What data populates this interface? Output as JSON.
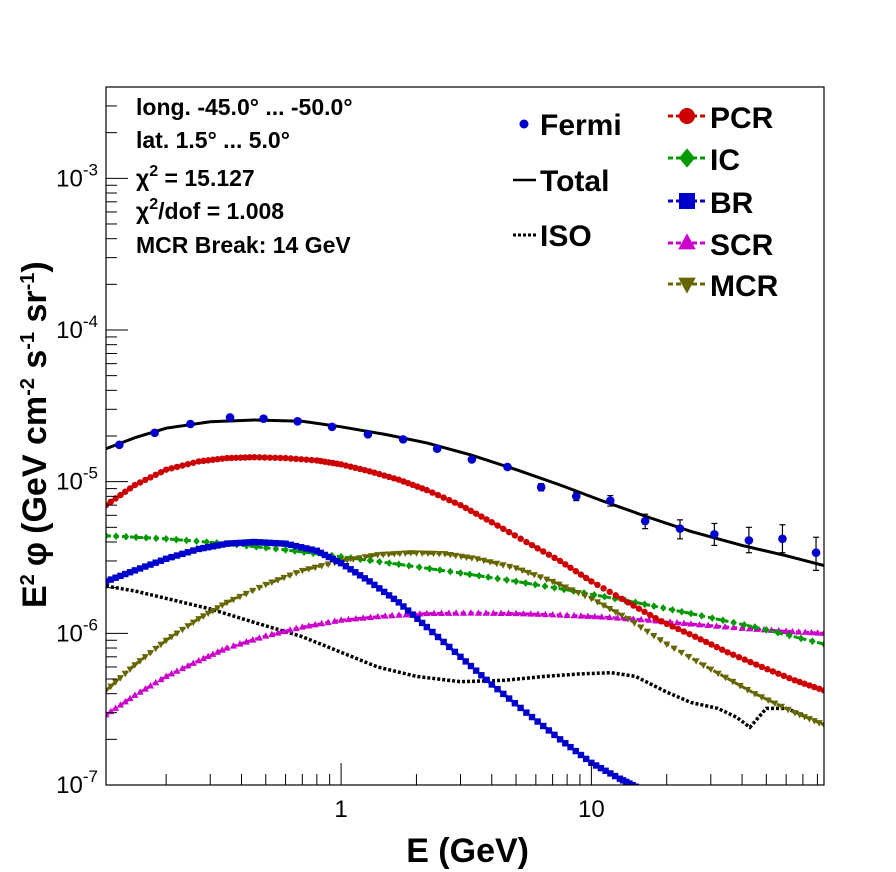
{
  "chart_data": {
    "type": "line",
    "xlabel": "E (GeV)",
    "ylabel_parts": {
      "prefix": "E",
      "prefix_sup": "2",
      "phi": "φ",
      "open": "(GeV cm",
      "cm_sup": "-2",
      "s": " s",
      "s_sup": "-1",
      "sr": " sr",
      "sr_sup": "-1",
      "close": ")"
    },
    "x_scale": "log",
    "y_scale": "log",
    "xlim": [
      0.115,
      85
    ],
    "ylim": [
      1e-07,
      0.004
    ],
    "x_tick_labels": [
      "1",
      "10"
    ],
    "y_tick_labels": [
      {
        "base": "10",
        "exp": "-7",
        "value": 1e-07
      },
      {
        "base": "10",
        "exp": "-6",
        "value": 1e-06
      },
      {
        "base": "10",
        "exp": "-5",
        "value": 1e-05
      },
      {
        "base": "10",
        "exp": "-4",
        "value": 0.0001
      },
      {
        "base": "10",
        "exp": "-3",
        "value": 0.001
      }
    ],
    "info_lines": [
      {
        "text": "long. -45.0° ... -50.0°"
      },
      {
        "text": "lat. 1.5° ... 5.0°"
      },
      {
        "pre": "χ",
        "sup": "2",
        "post": " = 15.127"
      },
      {
        "pre": "χ",
        "sup": "2",
        "post": "/dof = 1.008"
      },
      {
        "text": "MCR Break: 14 GeV"
      }
    ],
    "legend_left": [
      {
        "label": "Fermi",
        "series": "Fermi"
      },
      {
        "label": "Total",
        "series": "Total"
      },
      {
        "label": "ISO",
        "series": "ISO"
      }
    ],
    "legend_right": [
      {
        "label": "PCR",
        "series": "PCR"
      },
      {
        "label": "IC",
        "series": "IC"
      },
      {
        "label": "BR",
        "series": "BR"
      },
      {
        "label": "SCR",
        "series": "SCR"
      },
      {
        "label": "MCR",
        "series": "MCR"
      }
    ],
    "series": [
      {
        "name": "Fermi",
        "kind": "points",
        "color": "#0000cc",
        "x": [
          0.13,
          0.18,
          0.25,
          0.36,
          0.49,
          0.67,
          0.92,
          1.28,
          1.77,
          2.42,
          3.33,
          4.62,
          6.3,
          8.7,
          11.9,
          16.4,
          22.6,
          31.0,
          42.6,
          58.0,
          79.0
        ],
        "y": [
          1.75e-05,
          2.1e-05,
          2.4e-05,
          2.65e-05,
          2.6e-05,
          2.5e-05,
          2.3e-05,
          2.05e-05,
          1.9e-05,
          1.65e-05,
          1.4e-05,
          1.25e-05,
          9.2e-06,
          8e-06,
          7.5e-06,
          5.5e-06,
          4.9e-06,
          4.5e-06,
          4.1e-06,
          4.2e-06,
          3.4e-06
        ],
        "err_up": [
          0,
          0,
          0,
          0,
          0,
          0,
          0,
          0,
          0,
          0,
          0,
          0,
          5e-07,
          5e-07,
          6e-07,
          6e-07,
          7e-07,
          8e-07,
          9e-07,
          1e-06,
          9e-07
        ],
        "err_dn": [
          0,
          0,
          0,
          0,
          0,
          0,
          0,
          0,
          0,
          0,
          0,
          0,
          5e-07,
          5e-07,
          6e-07,
          6e-07,
          7e-07,
          7e-07,
          7e-07,
          8e-07,
          8e-07
        ]
      },
      {
        "name": "Total",
        "kind": "line",
        "color": "#000000",
        "x": [
          0.115,
          0.15,
          0.2,
          0.3,
          0.45,
          0.7,
          1.0,
          1.5,
          2.2,
          3.3,
          5.0,
          7.5,
          11,
          17,
          25,
          40,
          60,
          85
        ],
        "y": [
          1.65e-05,
          1.95e-05,
          2.25e-05,
          2.48e-05,
          2.55e-05,
          2.5e-05,
          2.3e-05,
          2.05e-05,
          1.8e-05,
          1.5e-05,
          1.2e-05,
          9.5e-06,
          7.5e-06,
          5.8e-06,
          4.7e-06,
          3.8e-06,
          3.25e-06,
          2.8e-06
        ]
      },
      {
        "name": "PCR",
        "kind": "markers",
        "color": "#cc0000",
        "marker": "circle",
        "x": [
          0.115,
          0.15,
          0.2,
          0.27,
          0.35,
          0.45,
          0.6,
          0.8,
          1.0,
          1.3,
          1.7,
          2.2,
          3.0,
          4.0,
          5.5,
          7.5,
          10,
          14,
          19,
          26,
          35,
          48,
          65,
          85
        ],
        "y": [
          7e-06,
          9.5e-06,
          1.2e-05,
          1.36e-05,
          1.43e-05,
          1.45e-05,
          1.43e-05,
          1.38e-05,
          1.3e-05,
          1.17e-05,
          1.03e-05,
          8.8e-06,
          7e-06,
          5.4e-06,
          4e-06,
          3e-06,
          2.2e-06,
          1.6e-06,
          1.2e-06,
          9.5e-07,
          7.5e-07,
          6e-07,
          4.9e-07,
          4.2e-07
        ]
      },
      {
        "name": "IC",
        "kind": "markers",
        "color": "#009900",
        "marker": "diamond",
        "x": [
          0.115,
          0.2,
          0.35,
          0.6,
          1.0,
          1.7,
          3.0,
          5.0,
          8.5,
          15,
          25,
          45,
          85
        ],
        "y": [
          4.4e-06,
          4.2e-06,
          3.9e-06,
          3.55e-06,
          3.2e-06,
          2.85e-06,
          2.5e-06,
          2.2e-06,
          1.9e-06,
          1.6e-06,
          1.35e-06,
          1.1e-06,
          8.5e-07
        ]
      },
      {
        "name": "BR",
        "kind": "markers",
        "color": "#0000cc",
        "marker": "square",
        "x": [
          0.115,
          0.15,
          0.2,
          0.27,
          0.35,
          0.45,
          0.6,
          0.8,
          1.0,
          1.3,
          1.7,
          2.2,
          3.0,
          4.0,
          5.5,
          7.5,
          10,
          13,
          15.5
        ],
        "y": [
          2.2e-06,
          2.6e-06,
          3.1e-06,
          3.6e-06,
          3.9e-06,
          4e-06,
          3.9e-06,
          3.5e-06,
          2.9e-06,
          2.2e-06,
          1.6e-06,
          1.1e-06,
          7e-07,
          4.6e-07,
          3e-07,
          2e-07,
          1.4e-07,
          1.1e-07,
          9.5e-08
        ]
      },
      {
        "name": "SCR",
        "kind": "markers",
        "color": "#cc00cc",
        "marker": "triangle-up",
        "x": [
          0.115,
          0.15,
          0.2,
          0.27,
          0.35,
          0.5,
          0.7,
          1.0,
          1.5,
          2.2,
          3.3,
          5.0,
          7.5,
          11,
          17,
          25,
          40,
          60,
          85
        ],
        "y": [
          2.9e-07,
          3.9e-07,
          5.2e-07,
          6.6e-07,
          8e-07,
          9.6e-07,
          1.1e-06,
          1.22e-06,
          1.3e-06,
          1.35e-06,
          1.36e-06,
          1.35e-06,
          1.32e-06,
          1.28e-06,
          1.22e-06,
          1.15e-06,
          1.08e-06,
          1.03e-06,
          1e-06
        ]
      },
      {
        "name": "MCR",
        "kind": "markers",
        "color": "#666600",
        "marker": "triangle-down",
        "x": [
          0.115,
          0.15,
          0.2,
          0.27,
          0.35,
          0.5,
          0.7,
          1.0,
          1.4,
          1.9,
          2.6,
          3.5,
          5.0,
          7.0,
          10,
          14,
          20,
          30,
          45,
          65,
          85
        ],
        "y": [
          4.2e-07,
          6.2e-07,
          9e-07,
          1.25e-06,
          1.6e-06,
          2.1e-06,
          2.6e-06,
          3e-06,
          3.3e-06,
          3.4e-06,
          3.35e-06,
          3.1e-06,
          2.7e-06,
          2.2e-06,
          1.7e-06,
          1.25e-06,
          8.5e-07,
          5.8e-07,
          4e-07,
          3e-07,
          2.5e-07
        ]
      },
      {
        "name": "ISO",
        "kind": "dotted",
        "color": "#000000",
        "x": [
          0.115,
          0.15,
          0.2,
          0.3,
          0.45,
          0.7,
          1.0,
          1.4,
          2.0,
          3.0,
          4.5,
          6.5,
          9.0,
          12,
          15,
          20,
          25,
          32,
          38,
          43,
          50,
          60,
          70
        ],
        "y": [
          2.05e-06,
          1.9e-06,
          1.7e-06,
          1.45e-06,
          1.18e-06,
          9.5e-07,
          7.5e-07,
          6e-07,
          5.2e-07,
          4.8e-07,
          4.9e-07,
          5.2e-07,
          5.4e-07,
          5.5e-07,
          5.2e-07,
          4.1e-07,
          3.5e-07,
          3.2e-07,
          2.8e-07,
          2.4e-07,
          3.2e-07,
          3.2e-07,
          2.9e-07
        ]
      }
    ]
  }
}
